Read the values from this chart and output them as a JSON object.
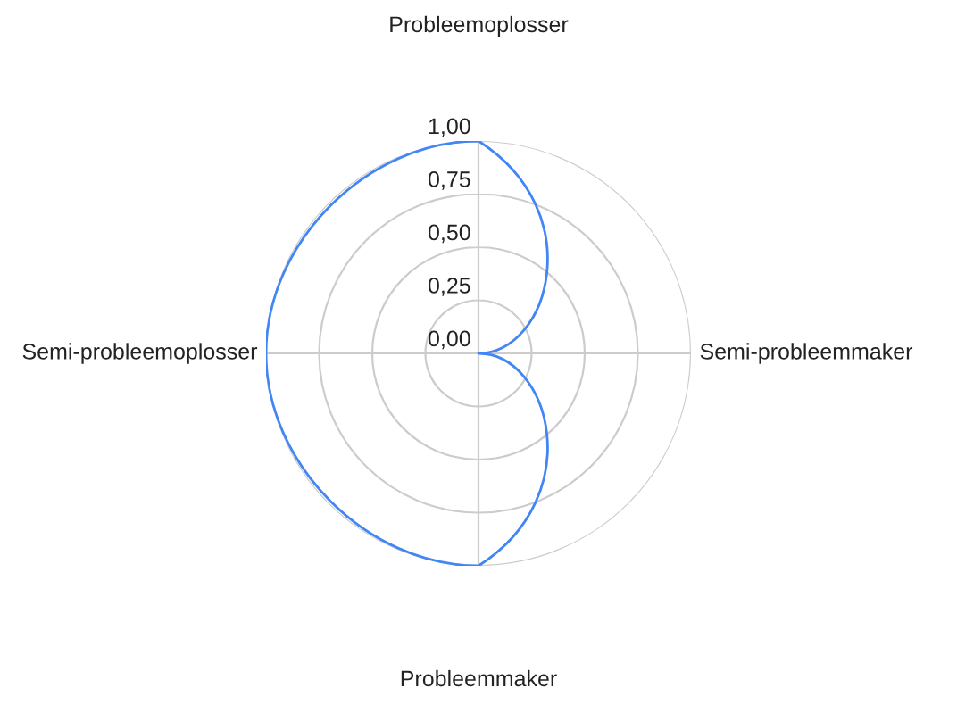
{
  "chart_data": {
    "type": "radar",
    "categories": [
      "Probleemoplosser",
      "Semi-probleemmaker",
      "Probleemmaker",
      "Semi-probleemoplosser"
    ],
    "series": [
      {
        "color": "#4285f4",
        "values": [
          1.0,
          0.0,
          1.0,
          1.0
        ]
      }
    ],
    "ylim": [
      0,
      1
    ],
    "yticks": [
      {
        "value": 0,
        "label": "0,00"
      },
      {
        "value": 0.25,
        "label": "0,25"
      },
      {
        "value": 0.5,
        "label": "0,50"
      },
      {
        "value": 0.75,
        "label": "0,75"
      },
      {
        "value": 1,
        "label": "1,00"
      }
    ],
    "grid": true
  }
}
